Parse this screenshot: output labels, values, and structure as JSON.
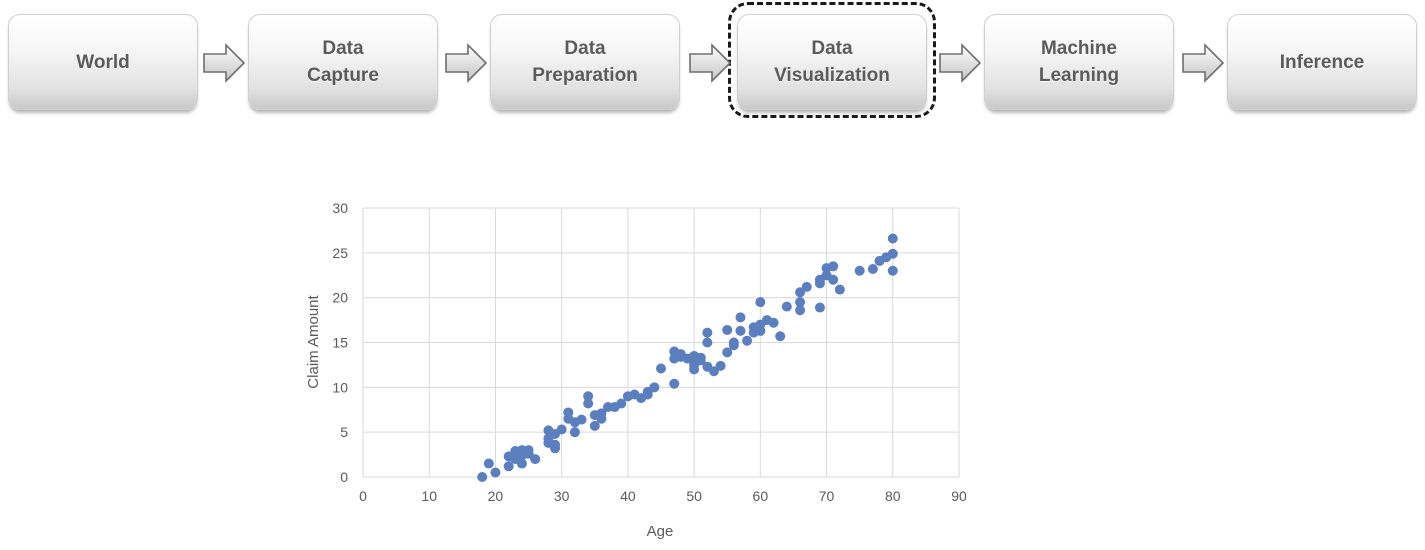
{
  "pipeline": {
    "stages": [
      {
        "label": "World"
      },
      {
        "label": "Data\nCapture"
      },
      {
        "label": "Data\nPreparation"
      },
      {
        "label": "Data\nVisualization"
      },
      {
        "label": "Machine\nLearning"
      },
      {
        "label": "Inference"
      }
    ],
    "highlighted_stage": "Data\nVisualization"
  },
  "colors": {
    "stage_text": "#5b5b5b",
    "marker": "#5b7fbe",
    "grid": "#d9d9d9",
    "highlight_border": "#1a1a1a"
  },
  "chart_data": {
    "type": "scatter",
    "title": "",
    "xlabel": "Age",
    "ylabel": "Claim Amount",
    "xlim": [
      0,
      90
    ],
    "ylim": [
      0,
      30
    ],
    "xticks": [
      "0",
      "10",
      "20",
      "30",
      "40",
      "50",
      "60",
      "70",
      "80",
      "90"
    ],
    "yticks": [
      "0",
      "5",
      "10",
      "15",
      "20",
      "25",
      "30"
    ],
    "grid": true,
    "legend": "none",
    "series": [
      {
        "x": [
          18,
          19,
          20,
          22,
          22,
          23,
          23,
          24,
          24,
          24,
          25,
          25,
          26,
          28,
          28,
          28,
          29,
          29,
          29,
          30,
          31,
          31,
          32,
          32,
          33,
          34,
          34,
          35,
          35,
          36,
          36,
          37,
          38,
          39,
          40,
          41,
          42,
          43,
          43,
          44,
          45,
          47,
          47,
          47,
          48,
          48,
          49,
          50,
          50,
          50,
          51,
          51,
          52,
          52,
          52,
          53,
          54,
          55,
          55,
          56,
          56,
          57,
          57,
          58,
          59,
          59,
          60,
          60,
          60,
          61,
          62,
          63,
          64,
          66,
          66,
          66,
          67,
          69,
          69,
          69,
          70,
          70,
          71,
          71,
          72,
          75,
          77,
          78,
          79,
          80,
          80,
          80
        ],
        "y": [
          0,
          1.5,
          0.5,
          1.2,
          2.3,
          2.0,
          2.9,
          2.4,
          1.5,
          3.0,
          2.6,
          3.0,
          2.0,
          5.2,
          3.8,
          4.3,
          3.2,
          3.6,
          4.8,
          5.3,
          6.5,
          7.2,
          5.0,
          6.1,
          6.4,
          8.2,
          9.0,
          6.9,
          5.7,
          6.5,
          7.1,
          7.8,
          7.8,
          8.2,
          9.0,
          9.2,
          8.8,
          9.2,
          9.5,
          10.0,
          12.1,
          10.4,
          13.2,
          14.0,
          13.4,
          13.7,
          13.2,
          12.0,
          12.5,
          13.5,
          13.0,
          13.3,
          12.3,
          15.0,
          16.1,
          11.8,
          12.4,
          13.9,
          16.4,
          14.7,
          15.0,
          16.3,
          17.8,
          15.2,
          16.7,
          16.1,
          16.3,
          17.0,
          19.5,
          17.5,
          17.2,
          15.7,
          19.0,
          18.6,
          19.5,
          20.6,
          21.2,
          18.9,
          21.6,
          22.0,
          22.5,
          23.3,
          22.0,
          23.5,
          20.9,
          23.0,
          23.2,
          24.1,
          24.5,
          24.9,
          23.0,
          26.6
        ]
      }
    ]
  }
}
